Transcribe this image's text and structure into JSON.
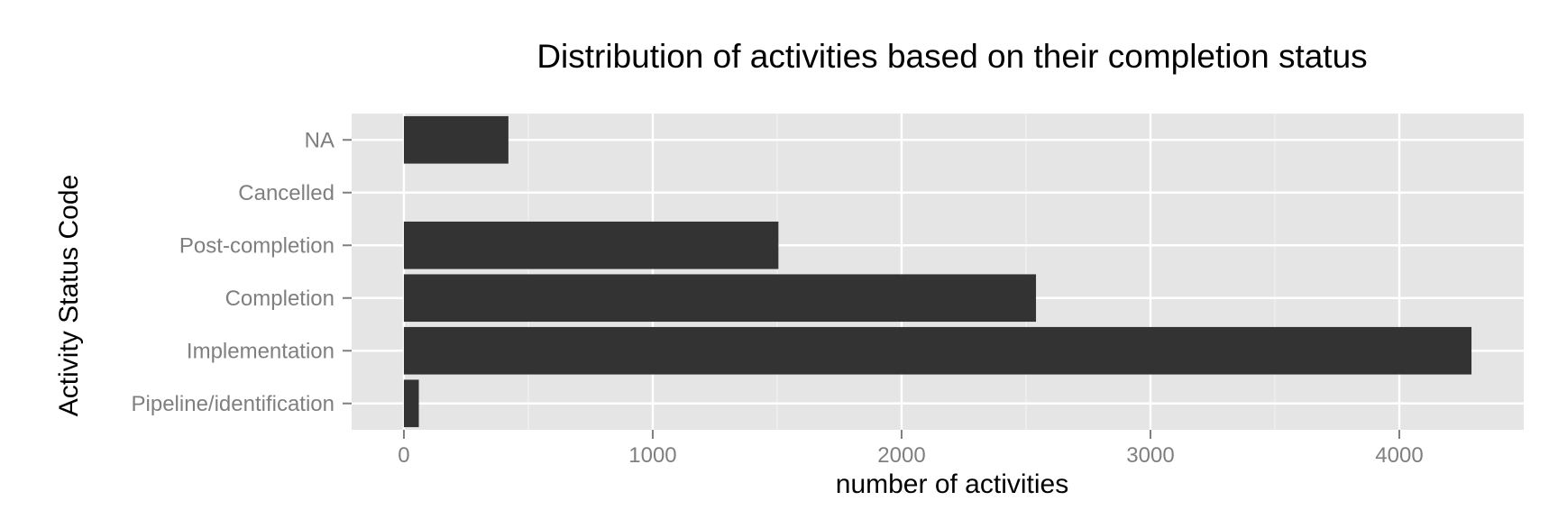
{
  "chart_data": {
    "type": "bar",
    "orientation": "horizontal",
    "title": "Distribution of activities based on their completion status",
    "xlabel": "number of activities",
    "ylabel": "Activity Status Code",
    "categories": [
      "Pipeline/identification",
      "Implementation",
      "Completion",
      "Post-completion",
      "Cancelled",
      "NA"
    ],
    "values": [
      60,
      4290,
      2540,
      1505,
      0,
      420
    ],
    "xlim": [
      -210,
      4500
    ],
    "xticks": [
      0,
      1000,
      2000,
      3000,
      4000
    ],
    "xtick_labels": [
      "0",
      "1000",
      "2000",
      "3000",
      "4000"
    ],
    "grid": true,
    "legend": "none",
    "colors": {
      "bar": "#333333",
      "panel_background": "#e5e5e5",
      "grid_major": "#ffffff",
      "grid_minor": "#f2f2f2",
      "tick_text": "#7f7f7f",
      "tick_mark": "#7f7f7f"
    }
  }
}
